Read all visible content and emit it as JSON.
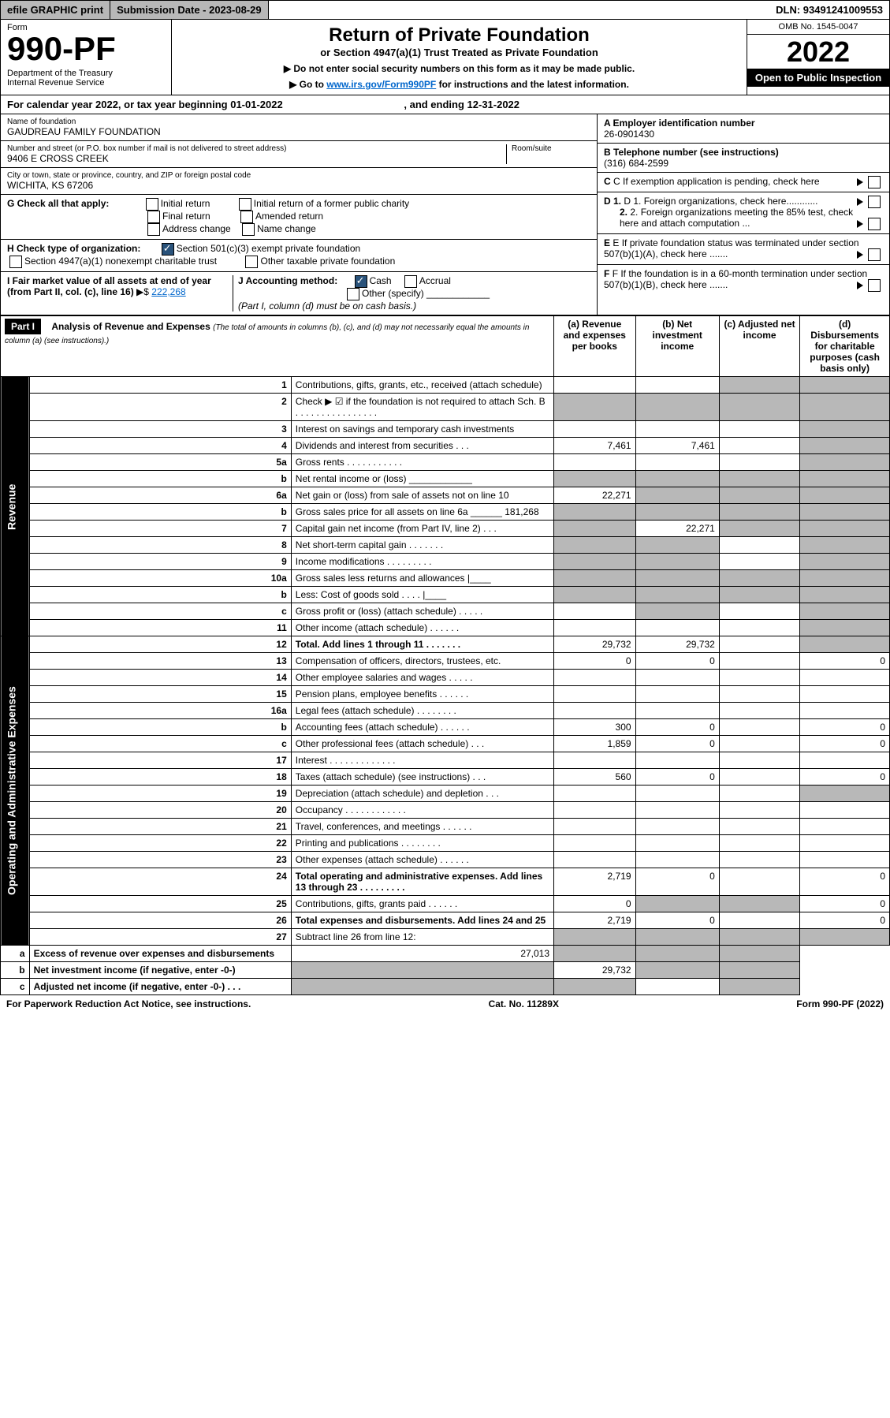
{
  "topbar": {
    "efile": "efile GRAPHIC print",
    "submission": "Submission Date - 2023-08-29",
    "dln": "DLN: 93491241009553"
  },
  "hdr": {
    "form": "Form",
    "num": "990-PF",
    "dept": "Department of the Treasury",
    "irs": "Internal Revenue Service",
    "title": "Return of Private Foundation",
    "sub1": "or Section 4947(a)(1) Trust Treated as Private Foundation",
    "sub2a": "▶ Do not enter social security numbers on this form as it may be made public.",
    "sub2b": "▶ Go to ",
    "sub2link": "www.irs.gov/Form990PF",
    "sub2c": " for instructions and the latest information.",
    "omb": "OMB No. 1545-0047",
    "year": "2022",
    "open": "Open to Public Inspection"
  },
  "cal": {
    "a": "For calendar year 2022, or tax year beginning 01-01-2022",
    "b": ", and ending 12-31-2022"
  },
  "name": {
    "lbl": "Name of foundation",
    "val": "GAUDREAU FAMILY FOUNDATION"
  },
  "ein": {
    "lbl": "A Employer identification number",
    "val": "26-0901430"
  },
  "addr": {
    "lbl": "Number and street (or P.O. box number if mail is not delivered to street address)",
    "val": "9406 E CROSS CREEK",
    "room": "Room/suite"
  },
  "tel": {
    "lbl": "B Telephone number (see instructions)",
    "val": "(316) 684-2599"
  },
  "city": {
    "lbl": "City or town, state or province, country, and ZIP or foreign postal code",
    "val": "WICHITA, KS  67206"
  },
  "c": {
    "txt": "C If exemption application is pending, check here"
  },
  "g": {
    "lbl": "G Check all that apply:",
    "o1": "Initial return",
    "o2": "Final return",
    "o3": "Address change",
    "o4": "Initial return of a former public charity",
    "o5": "Amended return",
    "o6": "Name change"
  },
  "d": {
    "d1": "D 1. Foreign organizations, check here............",
    "d2": "2. Foreign organizations meeting the 85% test, check here and attach computation ..."
  },
  "h": {
    "lbl": "H Check type of organization:",
    "o1": "Section 501(c)(3) exempt private foundation",
    "o2": "Section 4947(a)(1) nonexempt charitable trust",
    "o3": "Other taxable private foundation"
  },
  "e": {
    "txt": "E  If private foundation status was terminated under section 507(b)(1)(A), check here ......."
  },
  "i": {
    "lbl": "I Fair market value of all assets at end of year (from Part II, col. (c), line 16) ",
    "val": "222,268",
    "arrow": "▶$  "
  },
  "j": {
    "lbl": "J Accounting method:",
    "o1": "Cash",
    "o2": "Accrual",
    "o3": "Other (specify)",
    "note": "(Part I, column (d) must be on cash basis.)"
  },
  "f": {
    "txt": "F  If the foundation is in a 60-month termination under section 507(b)(1)(B), check here ......."
  },
  "partI": {
    "title": "Part I",
    "desc": "Analysis of Revenue and Expenses",
    "desc2": "(The total of amounts in columns (b), (c), and (d) may not necessarily equal the amounts in column (a) (see instructions).)",
    "ca": "(a)   Revenue and expenses per books",
    "cb": "(b)  Net investment income",
    "cc": "(c)  Adjusted net income",
    "cd": "(d)  Disbursements for charitable purposes (cash basis only)"
  },
  "rows": [
    {
      "n": "1",
      "d": "Contributions, gifts, grants, etc., received (attach schedule)",
      "a": "",
      "b": "",
      "c": "",
      "dd": "",
      "grayA": false,
      "grayC": true,
      "grayD": true
    },
    {
      "n": "2",
      "d": "Check ▶ ☑ if the foundation is not required to attach Sch. B  .  .  .  .  .  .  .  .  .  .  .  .  .  .  .  .",
      "a": "",
      "b": "",
      "c": "",
      "dd": "",
      "grayA": true,
      "grayB": true,
      "grayC": true,
      "grayD": true
    },
    {
      "n": "3",
      "d": "Interest on savings and temporary cash investments",
      "a": "",
      "b": "",
      "c": "",
      "dd": "",
      "grayD": true
    },
    {
      "n": "4",
      "d": "Dividends and interest from securities   .   .   .",
      "a": "7,461",
      "b": "7,461",
      "c": "",
      "dd": "",
      "grayD": true
    },
    {
      "n": "5a",
      "d": "Gross rents   .   .   .   .   .   .   .   .   .   .   .",
      "a": "",
      "b": "",
      "c": "",
      "dd": "",
      "grayD": true
    },
    {
      "n": "b",
      "d": "Net rental income or (loss)  ____________",
      "a": "",
      "b": "",
      "c": "",
      "dd": "",
      "grayA": true,
      "grayB": true,
      "grayC": true,
      "grayD": true
    },
    {
      "n": "6a",
      "d": "Net gain or (loss) from sale of assets not on line 10",
      "a": "22,271",
      "b": "",
      "c": "",
      "dd": "",
      "grayB": true,
      "grayC": true,
      "grayD": true
    },
    {
      "n": "b",
      "d": "Gross sales price for all assets on line 6a ______ 181,268",
      "a": "",
      "b": "",
      "c": "",
      "dd": "",
      "grayA": true,
      "grayB": true,
      "grayC": true,
      "grayD": true
    },
    {
      "n": "7",
      "d": "Capital gain net income (from Part IV, line 2)   .   .   .",
      "a": "",
      "b": "22,271",
      "c": "",
      "dd": "",
      "grayA": true,
      "grayC": true,
      "grayD": true
    },
    {
      "n": "8",
      "d": "Net short-term capital gain   .   .   .   .   .   .   .",
      "a": "",
      "b": "",
      "c": "",
      "dd": "",
      "grayA": true,
      "grayB": true,
      "grayD": true
    },
    {
      "n": "9",
      "d": "Income modifications   .   .   .   .   .   .   .   .   .",
      "a": "",
      "b": "",
      "c": "",
      "dd": "",
      "grayA": true,
      "grayB": true,
      "grayD": true
    },
    {
      "n": "10a",
      "d": "Gross sales less returns and allowances  |____",
      "a": "",
      "b": "",
      "c": "",
      "dd": "",
      "grayA": true,
      "grayB": true,
      "grayC": true,
      "grayD": true
    },
    {
      "n": "b",
      "d": "Less: Cost of goods sold   .   .   .   .   |____",
      "a": "",
      "b": "",
      "c": "",
      "dd": "",
      "grayA": true,
      "grayB": true,
      "grayC": true,
      "grayD": true
    },
    {
      "n": "c",
      "d": "Gross profit or (loss) (attach schedule)   .   .   .   .   .",
      "a": "",
      "b": "",
      "c": "",
      "dd": "",
      "grayB": true,
      "grayD": true
    },
    {
      "n": "11",
      "d": "Other income (attach schedule)   .   .   .   .   .   .",
      "a": "",
      "b": "",
      "c": "",
      "dd": "",
      "grayD": true
    },
    {
      "n": "12",
      "d": "Total. Add lines 1 through 11   .   .   .   .   .   .   .",
      "a": "29,732",
      "b": "29,732",
      "c": "",
      "dd": "",
      "grayD": true,
      "bold": true
    },
    {
      "n": "13",
      "d": "Compensation of officers, directors, trustees, etc.",
      "a": "0",
      "b": "0",
      "c": "",
      "dd": "0"
    },
    {
      "n": "14",
      "d": "Other employee salaries and wages   .   .   .   .   .",
      "a": "",
      "b": "",
      "c": "",
      "dd": ""
    },
    {
      "n": "15",
      "d": "Pension plans, employee benefits   .   .   .   .   .   .",
      "a": "",
      "b": "",
      "c": "",
      "dd": ""
    },
    {
      "n": "16a",
      "d": "Legal fees (attach schedule)   .   .   .   .   .   .   .   .",
      "a": "",
      "b": "",
      "c": "",
      "dd": ""
    },
    {
      "n": "b",
      "d": "Accounting fees (attach schedule)   .   .   .   .   .   .",
      "a": "300",
      "b": "0",
      "c": "",
      "dd": "0"
    },
    {
      "n": "c",
      "d": "Other professional fees (attach schedule)   .   .   .",
      "a": "1,859",
      "b": "0",
      "c": "",
      "dd": "0"
    },
    {
      "n": "17",
      "d": "Interest   .   .   .   .   .   .   .   .   .   .   .   .   .",
      "a": "",
      "b": "",
      "c": "",
      "dd": ""
    },
    {
      "n": "18",
      "d": "Taxes (attach schedule) (see instructions)   .   .   .",
      "a": "560",
      "b": "0",
      "c": "",
      "dd": "0"
    },
    {
      "n": "19",
      "d": "Depreciation (attach schedule) and depletion   .   .   .",
      "a": "",
      "b": "",
      "c": "",
      "dd": "",
      "grayD": true
    },
    {
      "n": "20",
      "d": "Occupancy   .   .   .   .   .   .   .   .   .   .   .   .",
      "a": "",
      "b": "",
      "c": "",
      "dd": ""
    },
    {
      "n": "21",
      "d": "Travel, conferences, and meetings   .   .   .   .   .   .",
      "a": "",
      "b": "",
      "c": "",
      "dd": ""
    },
    {
      "n": "22",
      "d": "Printing and publications   .   .   .   .   .   .   .   .",
      "a": "",
      "b": "",
      "c": "",
      "dd": ""
    },
    {
      "n": "23",
      "d": "Other expenses (attach schedule)   .   .   .   .   .   .",
      "a": "",
      "b": "",
      "c": "",
      "dd": ""
    },
    {
      "n": "24",
      "d": "Total operating and administrative expenses. Add lines 13 through 23   .   .   .   .   .   .   .   .   .",
      "a": "2,719",
      "b": "0",
      "c": "",
      "dd": "0",
      "bold": true
    },
    {
      "n": "25",
      "d": "Contributions, gifts, grants paid   .   .   .   .   .   .",
      "a": "0",
      "b": "",
      "c": "",
      "dd": "0",
      "grayB": true,
      "grayC": true
    },
    {
      "n": "26",
      "d": "Total expenses and disbursements. Add lines 24 and 25",
      "a": "2,719",
      "b": "0",
      "c": "",
      "dd": "0",
      "bold": true
    },
    {
      "n": "27",
      "d": "Subtract line 26 from line 12:",
      "a": "",
      "b": "",
      "c": "",
      "dd": "",
      "grayA": true,
      "grayB": true,
      "grayC": true,
      "grayD": true
    },
    {
      "n": "a",
      "d": "Excess of revenue over expenses and disbursements",
      "a": "27,013",
      "b": "",
      "c": "",
      "dd": "",
      "grayB": true,
      "grayC": true,
      "grayD": true,
      "bold": true
    },
    {
      "n": "b",
      "d": "Net investment income (if negative, enter -0-)",
      "a": "",
      "b": "29,732",
      "c": "",
      "dd": "",
      "grayA": true,
      "grayC": true,
      "grayD": true,
      "bold": true
    },
    {
      "n": "c",
      "d": "Adjusted net income (if negative, enter -0-)   .   .   .",
      "a": "",
      "b": "",
      "c": "",
      "dd": "",
      "grayA": true,
      "grayB": true,
      "grayD": true,
      "bold": true
    }
  ],
  "sections": {
    "rev": "Revenue",
    "oae": "Operating and Administrative Expenses"
  },
  "footer": {
    "a": "For Paperwork Reduction Act Notice, see instructions.",
    "b": "Cat. No. 11289X",
    "c": "Form 990-PF (2022)"
  }
}
